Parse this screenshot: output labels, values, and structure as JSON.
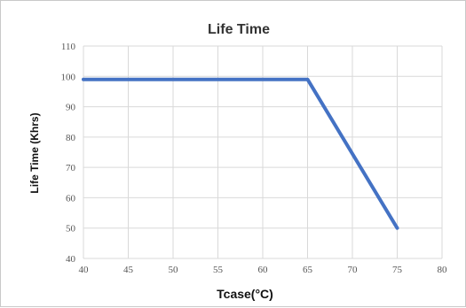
{
  "chart_data": {
    "type": "line",
    "title": "Life Time",
    "xlabel": "Tcase(°C)",
    "ylabel": "Life Time (Khrs)",
    "xlim": [
      40,
      80
    ],
    "ylim": [
      40,
      110
    ],
    "xticks": [
      40,
      45,
      50,
      55,
      60,
      65,
      70,
      75,
      80
    ],
    "yticks": [
      40,
      50,
      60,
      70,
      80,
      90,
      100,
      110
    ],
    "grid": true,
    "legend": "none",
    "series": [
      {
        "color": "#4472c4",
        "x": [
          40,
          65,
          75
        ],
        "y": [
          99,
          99,
          50
        ]
      }
    ]
  }
}
